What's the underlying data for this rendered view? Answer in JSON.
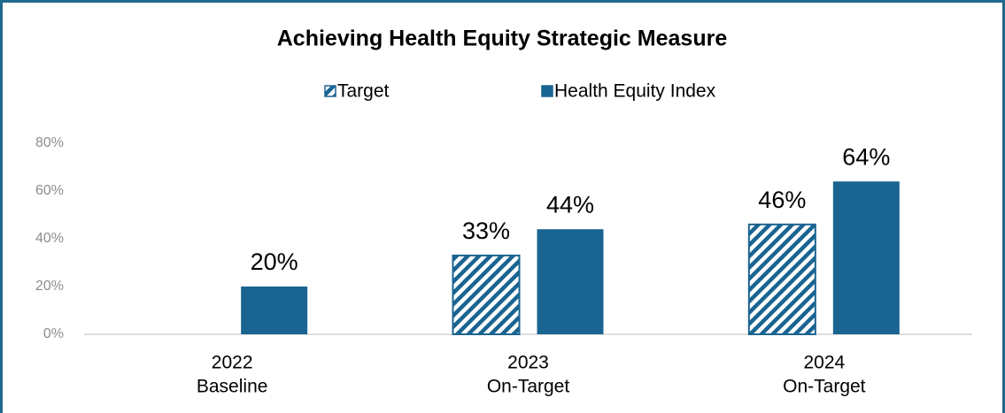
{
  "chart_data": {
    "type": "bar",
    "title": "Achieving Health Equity Strategic Measure",
    "categories": [
      [
        "2022",
        "Baseline"
      ],
      [
        "2023",
        "On-Target"
      ],
      [
        "2024",
        "On-Target"
      ]
    ],
    "series": [
      {
        "name": "Target",
        "color": "#1a6491",
        "fill": "hatch",
        "values": [
          null,
          33,
          46
        ],
        "value_labels": [
          null,
          "33%",
          "46%"
        ]
      },
      {
        "name": "Health Equity Index",
        "color": "#1a6491",
        "fill": "solid",
        "values": [
          20,
          44,
          64
        ],
        "value_labels": [
          "20%",
          "44%",
          "64%"
        ]
      }
    ],
    "ylim": [
      0,
      80
    ],
    "yticks": [
      {
        "value": 0,
        "label": "0%"
      },
      {
        "value": 20,
        "label": "20%"
      },
      {
        "value": 40,
        "label": "40%"
      },
      {
        "value": 60,
        "label": "60%"
      },
      {
        "value": 80,
        "label": "80%"
      }
    ],
    "grid": false,
    "legend": "top"
  }
}
